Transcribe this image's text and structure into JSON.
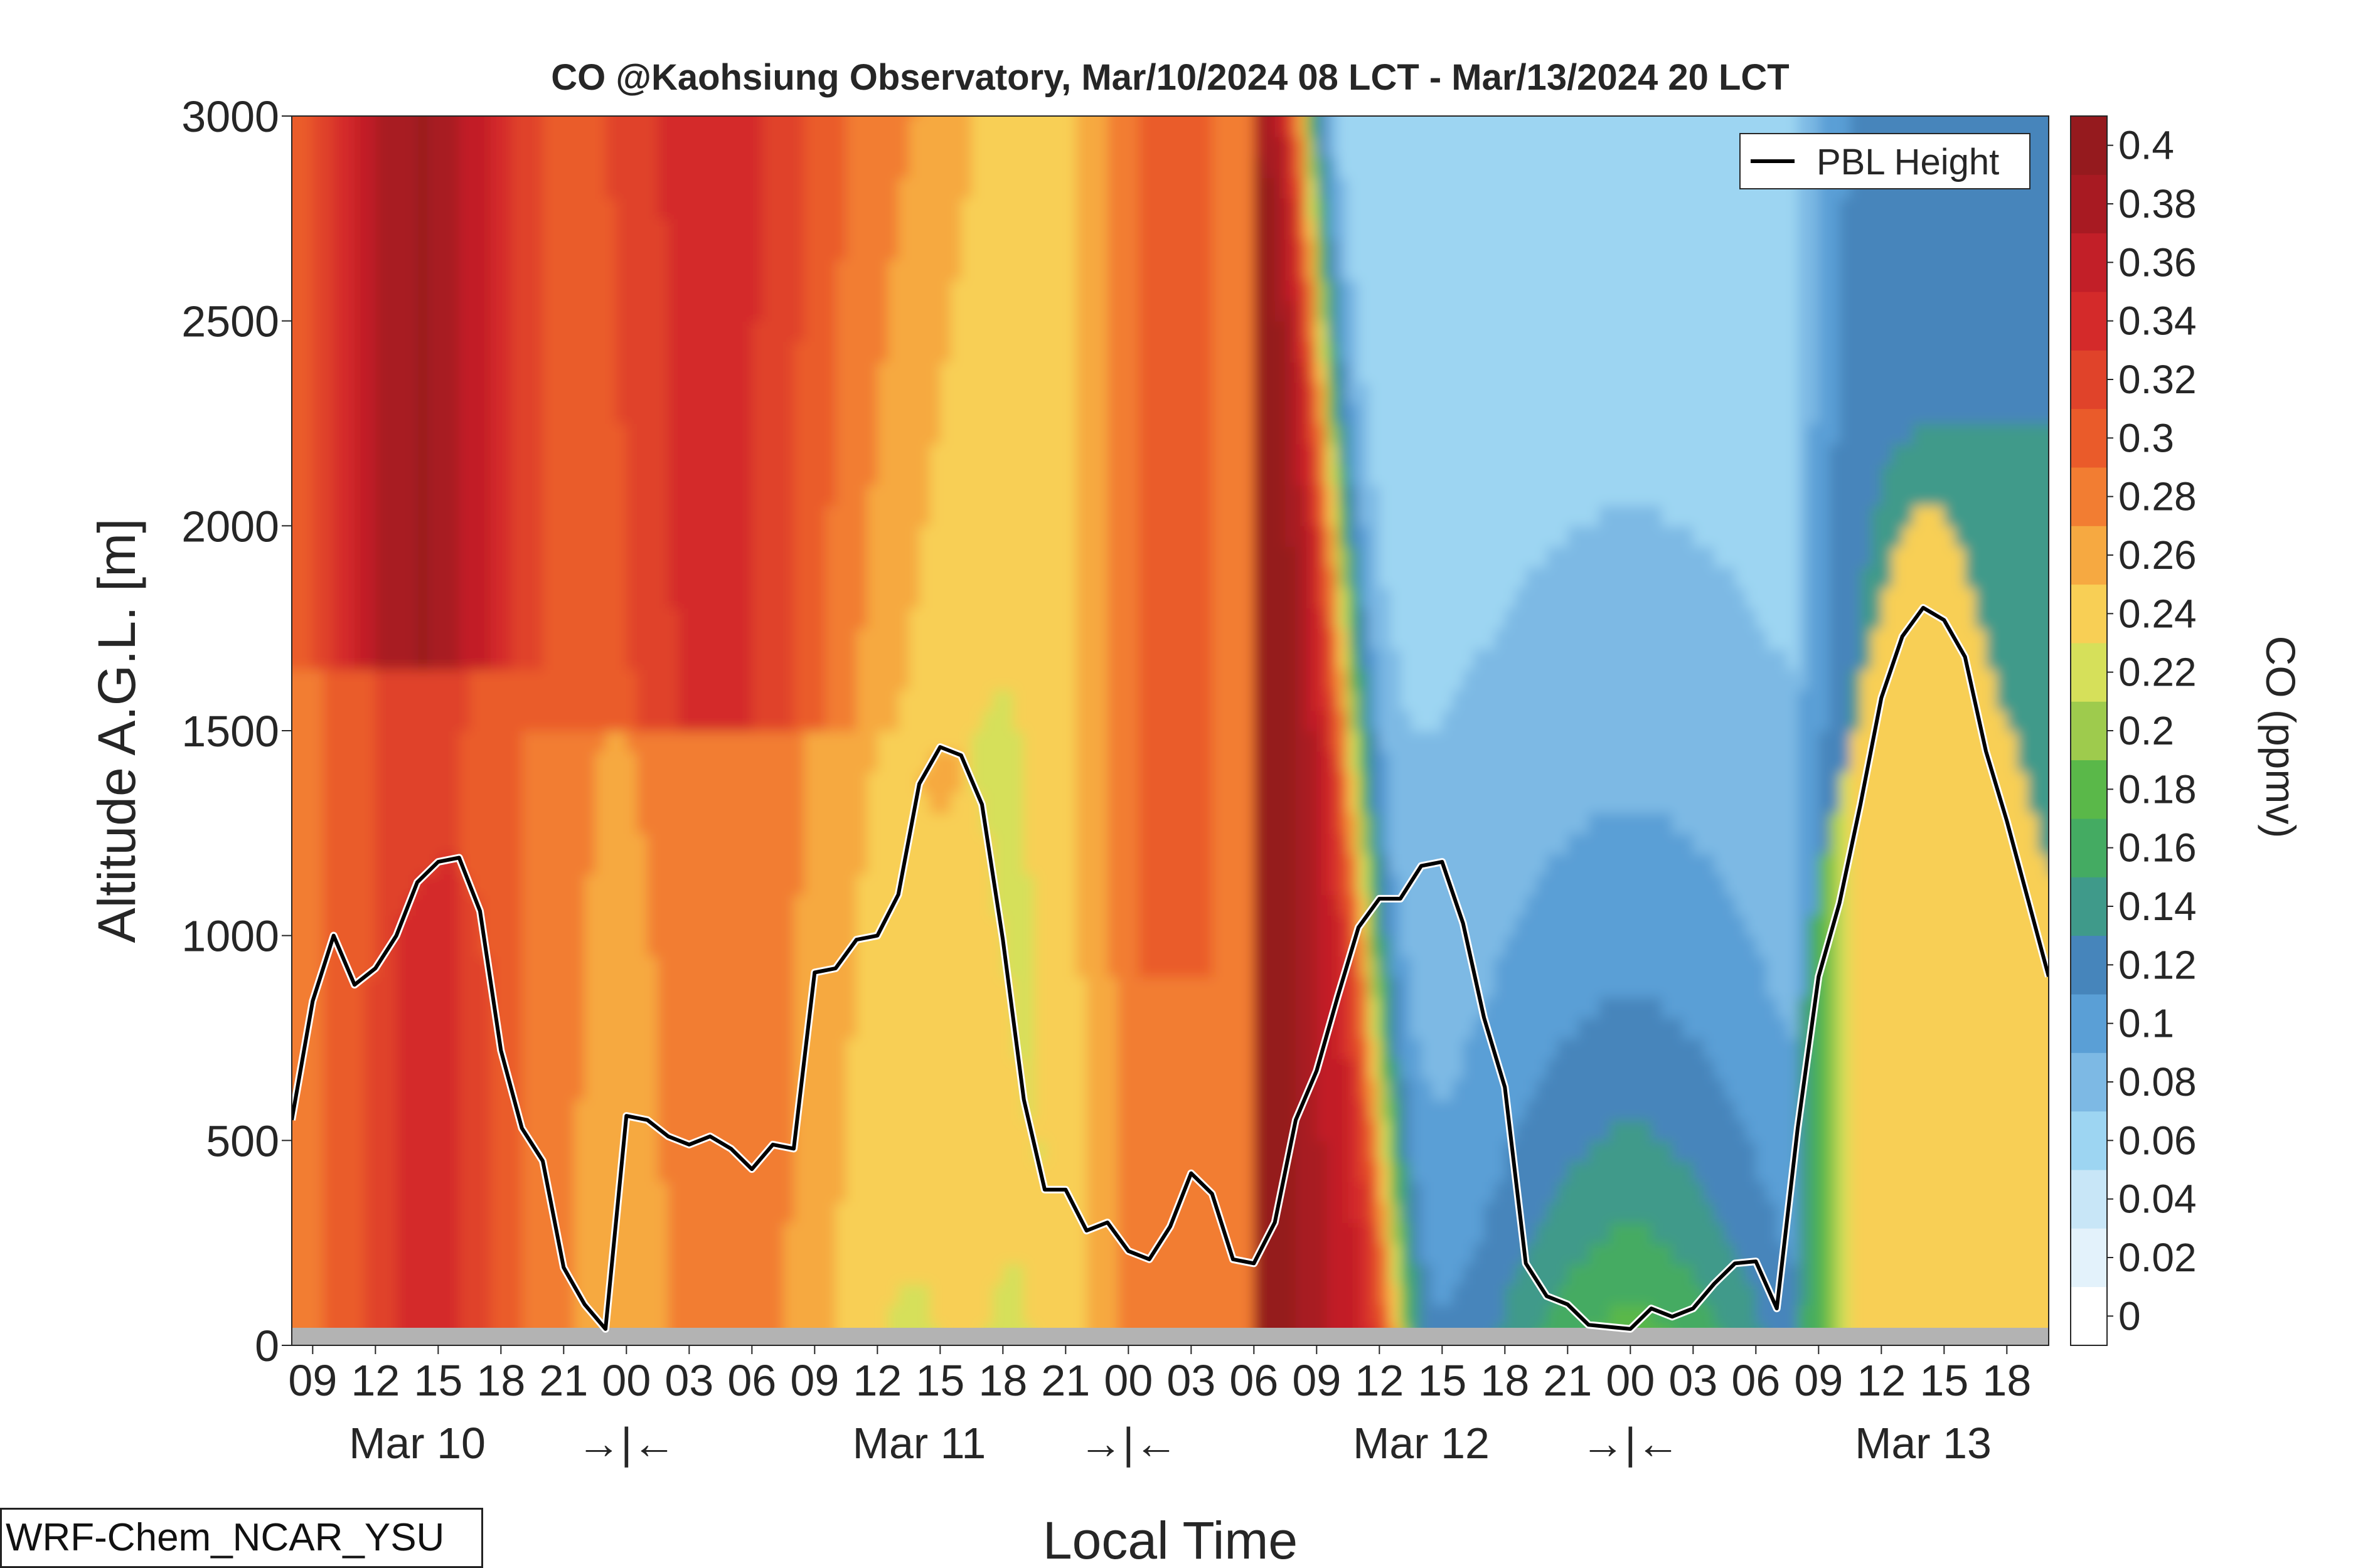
{
  "chart_data": {
    "type": "heatmap",
    "title": "CO @Kaohsiung Observatory, Mar/10/2024 08 LCT - Mar/13/2024 20 LCT",
    "xlabel": "Local Time",
    "ylabel": "Altitude A.G.L. [m]",
    "ylim": [
      0,
      3000
    ],
    "yticks": [
      "0",
      "500",
      "1000",
      "1500",
      "2000",
      "2500",
      "3000"
    ],
    "xlim_hours": [
      8,
      92
    ],
    "xticks": [
      "09",
      "12",
      "15",
      "18",
      "21",
      "00",
      "03",
      "06",
      "09",
      "12",
      "15",
      "18",
      "21",
      "00",
      "03",
      "06",
      "09",
      "12",
      "15",
      "18",
      "21",
      "00",
      "03",
      "06",
      "09",
      "12",
      "15",
      "18"
    ],
    "date_labels": [
      "Mar 10",
      "→|←",
      "Mar 11",
      "→|←",
      "Mar 12",
      "→|←",
      "Mar 13"
    ],
    "colorbar": {
      "label": "CO (ppmv)",
      "ticks": [
        "0",
        "0.02",
        "0.04",
        "0.06",
        "0.08",
        "0.1",
        "0.12",
        "0.14",
        "0.16",
        "0.18",
        "0.2",
        "0.22",
        "0.24",
        "0.26",
        "0.28",
        "0.3",
        "0.32",
        "0.34",
        "0.36",
        "0.38",
        "0.4"
      ],
      "colors": [
        "#ffffff",
        "#e3f2fb",
        "#c8e6f7",
        "#9dd5f2",
        "#7db9e4",
        "#5a9fd6",
        "#4685bb",
        "#3f9a8a",
        "#44ab62",
        "#5ab849",
        "#9ecb4d",
        "#d6e05a",
        "#f8cf55",
        "#f6a941",
        "#f27d32",
        "#ea5b2a",
        "#e0432a",
        "#d42a2a",
        "#c21f28",
        "#a81a22",
        "#951a1e"
      ]
    },
    "series": [
      {
        "name": "PBL Height",
        "x_hours": [
          8,
          9,
          10,
          11,
          12,
          13,
          14,
          15,
          16,
          17,
          18,
          19,
          20,
          21,
          22,
          23,
          24,
          25,
          26,
          27,
          28,
          29,
          30,
          31,
          32,
          33,
          34,
          35,
          36,
          37,
          38,
          39,
          40,
          41,
          42,
          43,
          44,
          45,
          46,
          47,
          48,
          49,
          50,
          51,
          52,
          53,
          54,
          55,
          56,
          57,
          58,
          59,
          60,
          61,
          62,
          63,
          64,
          65,
          66,
          67,
          68,
          69,
          70,
          71,
          72,
          73,
          74,
          75,
          76,
          77,
          78,
          79,
          80,
          81,
          82,
          83,
          84,
          85,
          86,
          87,
          88,
          89,
          90,
          91,
          92
        ],
        "y": [
          550,
          840,
          1000,
          880,
          920,
          1000,
          1130,
          1180,
          1190,
          1060,
          720,
          530,
          450,
          190,
          100,
          40,
          560,
          550,
          510,
          490,
          510,
          480,
          430,
          490,
          480,
          910,
          920,
          990,
          1000,
          1100,
          1370,
          1460,
          1440,
          1320,
          990,
          600,
          380,
          380,
          280,
          300,
          230,
          210,
          290,
          420,
          370,
          210,
          200,
          300,
          550,
          670,
          850,
          1020,
          1090,
          1090,
          1170,
          1180,
          1030,
          800,
          630,
          200,
          120,
          100,
          50,
          45,
          40,
          90,
          70,
          90,
          150,
          200,
          205,
          90,
          530,
          900,
          1080,
          1320,
          1580,
          1730,
          1800,
          1770,
          1680,
          1450,
          1280,
          1090,
          900
        ]
      }
    ],
    "legend": {
      "position": "top-right",
      "entries": [
        "PBL Height"
      ]
    },
    "notes": "Filled-contour altitude-time curtain of CO mixing ratio; grey band marks surface (0-50 m)."
  },
  "footer_label": "WRF-Chem_NCAR_YSU"
}
